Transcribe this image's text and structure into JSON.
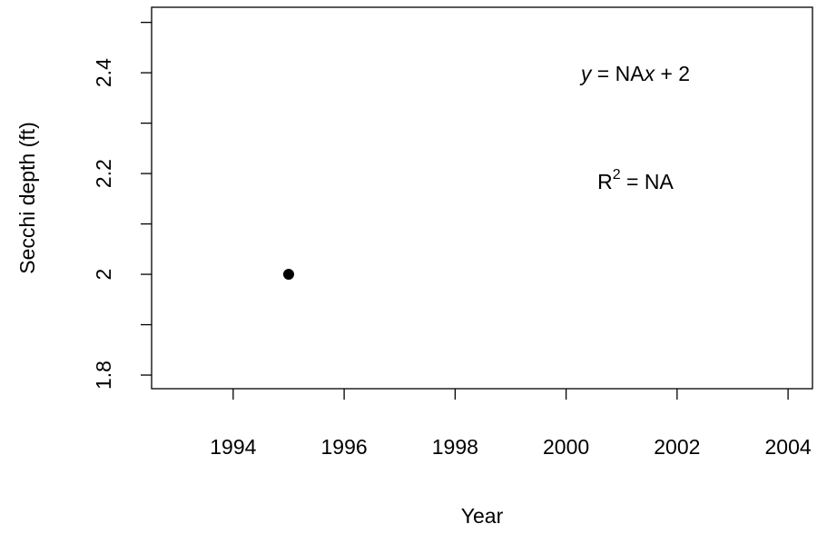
{
  "chart_data": {
    "type": "scatter",
    "x_label": "Year",
    "y_label": "Secchi depth (ft)",
    "x": [
      1995
    ],
    "y": [
      2.0
    ],
    "color": "#000000",
    "xlim": [
      1992.53,
      2004.44
    ],
    "xticks": [
      1994,
      1996,
      1998,
      2000,
      2002,
      2004
    ],
    "ylim": [
      1.773,
      2.53
    ],
    "yticks": [
      1.8,
      2.0,
      2.2,
      2.4
    ],
    "yminorticks": [
      1.9,
      2.1,
      2.3,
      2.5
    ],
    "annotations": [
      [
        "y",
        " = NA",
        "x",
        " + 2"
      ],
      [
        "R",
        "2",
        " = NA"
      ]
    ]
  }
}
